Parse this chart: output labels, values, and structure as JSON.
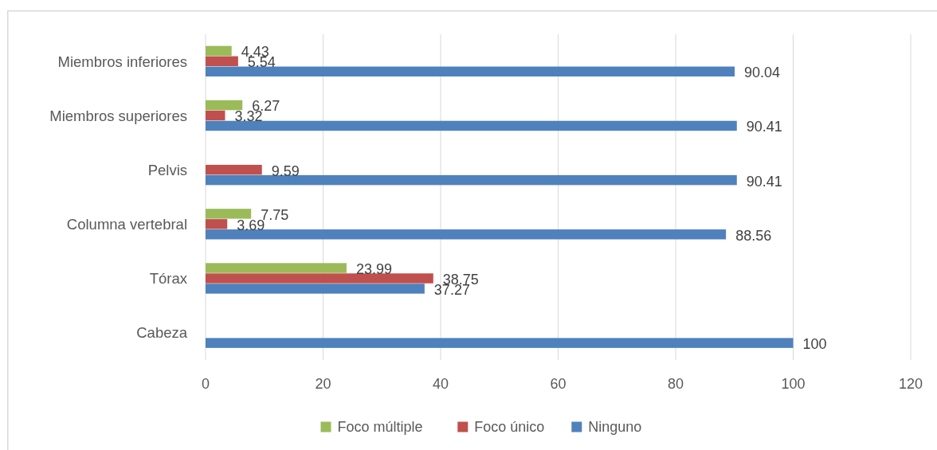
{
  "chart_data": {
    "type": "bar",
    "orientation": "horizontal",
    "categories": [
      "Miembros inferiores",
      "Miembros superiores",
      "Pelvis",
      "Columna vertebral",
      "Tórax",
      "Cabeza"
    ],
    "series": [
      {
        "name": "Foco múltiple",
        "color": "#9bbb59",
        "values": [
          4.43,
          6.27,
          null,
          7.75,
          23.99,
          null
        ]
      },
      {
        "name": "Foco único",
        "color": "#c0504d",
        "values": [
          5.54,
          3.32,
          9.59,
          3.69,
          38.75,
          null
        ]
      },
      {
        "name": "Ninguno",
        "color": "#4f81bd",
        "values": [
          90.04,
          90.41,
          90.41,
          88.56,
          37.27,
          100
        ]
      }
    ],
    "xlim": [
      0,
      120
    ],
    "xticks": [
      0,
      20,
      40,
      60,
      80,
      100,
      120
    ],
    "grid": "x",
    "legend": "bottom",
    "data_labels": true
  }
}
